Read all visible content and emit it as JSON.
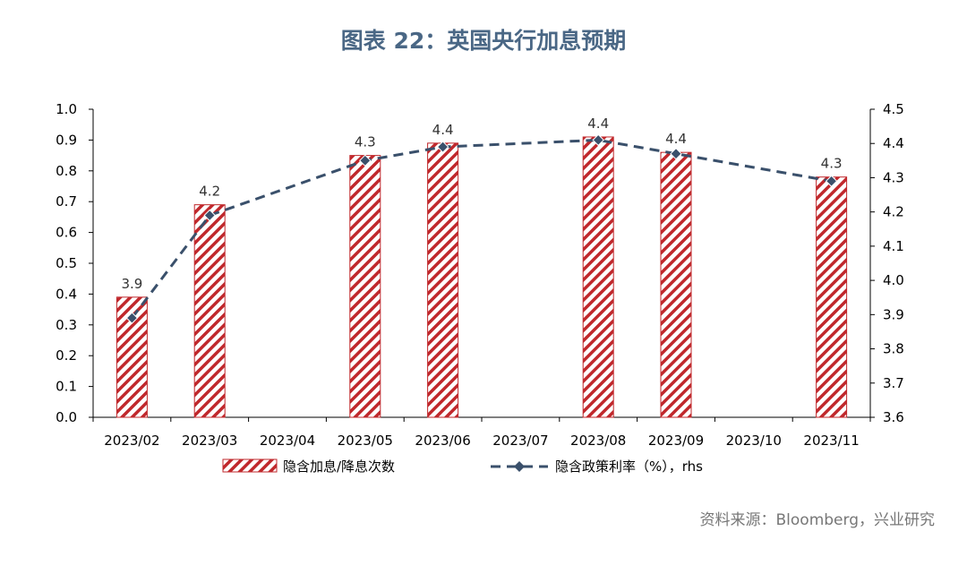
{
  "title": "图表 22：英国央行加息预期",
  "source": "资料来源：Bloomberg，兴业研究",
  "colors": {
    "bar_stroke": "#c0282c",
    "line": "#3a506b",
    "text": "#000000",
    "title": "#4a6785"
  },
  "chart_data": {
    "type": "bar+line",
    "categories": [
      "2023/02",
      "2023/03",
      "2023/04",
      "2023/05",
      "2023/06",
      "2023/07",
      "2023/08",
      "2023/09",
      "2023/10",
      "2023/11"
    ],
    "series": [
      {
        "name": "隐含加息/降息次数",
        "type": "bar",
        "axis": "left",
        "values": [
          0.39,
          0.69,
          null,
          0.85,
          0.89,
          null,
          0.91,
          0.86,
          null,
          0.78
        ]
      },
      {
        "name": "隐含政策利率（%），rhs",
        "type": "line",
        "axis": "right",
        "values": [
          3.89,
          4.19,
          null,
          4.35,
          4.39,
          null,
          4.41,
          4.37,
          null,
          4.29
        ],
        "labels": [
          "3.9",
          "4.2",
          null,
          "4.3",
          "4.4",
          null,
          "4.4",
          "4.4",
          null,
          "4.3"
        ]
      }
    ],
    "ylim_left": [
      0.0,
      1.0
    ],
    "yticks_left": [
      "0.0",
      "0.1",
      "0.2",
      "0.3",
      "0.4",
      "0.5",
      "0.6",
      "0.7",
      "0.8",
      "0.9",
      "1.0"
    ],
    "ylim_right": [
      3.6,
      4.5
    ],
    "yticks_right": [
      "3.6",
      "3.7",
      "3.8",
      "3.9",
      "4.0",
      "4.1",
      "4.2",
      "4.3",
      "4.4",
      "4.5"
    ],
    "legend": [
      "隐含加息/降息次数",
      "隐含政策利率（%），rhs"
    ],
    "legend_position": "bottom"
  }
}
